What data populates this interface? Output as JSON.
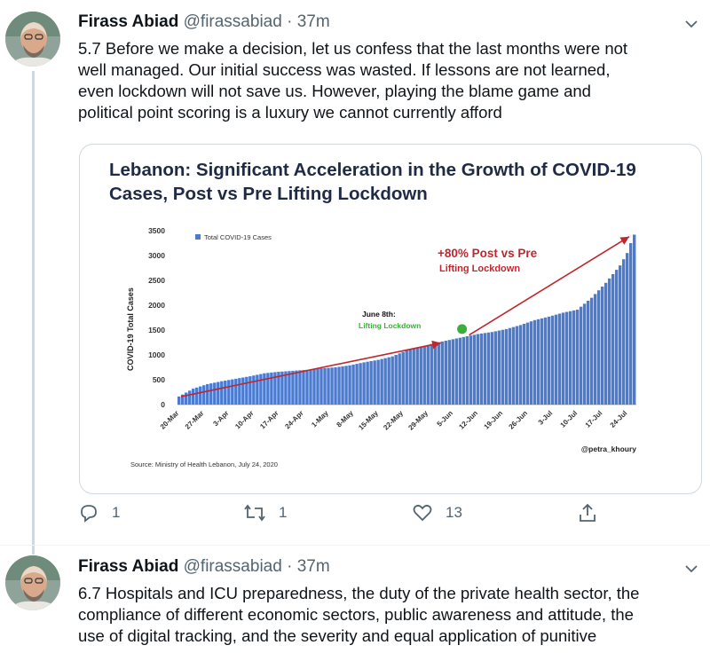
{
  "tweets": [
    {
      "name": "Firass Abiad",
      "handle": "@firassabiad",
      "separator": "·",
      "time": "37m",
      "lines": [
        "5.7 Before we make a decision, let us confess that the last months were not",
        "well managed. Our initial success was wasted. If lessons are not learned,",
        "even lockdown will not save us. However, playing the blame game and",
        "political point scoring is a luxury we cannot currently afford"
      ],
      "actions": {
        "reply_count": "1",
        "retweet_count": "1",
        "like_count": "13"
      }
    },
    {
      "name": "Firass Abiad",
      "handle": "@firassabiad",
      "separator": "·",
      "time": "37m",
      "lines": [
        "6.7 Hospitals and ICU preparedness, the duty of the private health sector, the",
        "compliance of different economic sectors, public awareness and attitude, the",
        "use of digital tracking, and the severity and equal application of punitive"
      ]
    }
  ],
  "icons": [
    "avatar",
    "chevron-down-icon",
    "reply-icon",
    "retweet-icon",
    "like-icon",
    "share-icon"
  ],
  "colors": {
    "bar": "#4a7bd0",
    "arrow": "#c0272d",
    "marker": "#3cae3c",
    "title": "#1f2a44"
  },
  "chart_data": {
    "type": "bar",
    "title_line1": "Lebanon: Significant Acceleration in the Growth of COVID-19",
    "title_line2": "Cases, Post vs Pre Lifting Lockdown",
    "legend": "Total COVID-19 Cases",
    "ylabel": "COVID-19 Total Cases",
    "ylim": [
      0,
      3500
    ],
    "yticks": [
      0,
      500,
      1000,
      1500,
      2000,
      2500,
      3000,
      3500
    ],
    "xticks": [
      "20-Mar",
      "27-Mar",
      "3-Apr",
      "10-Apr",
      "17-Apr",
      "24-Apr",
      "1-May",
      "8-May",
      "15-May",
      "22-May",
      "29-May",
      "5-Jun",
      "12-Jun",
      "19-Jun",
      "26-Jun",
      "3-Jul",
      "10-Jul",
      "17-Jul",
      "24-Jul"
    ],
    "annotation_marker_line1": "June 8th:",
    "annotation_marker_line2": "Lifting Lockdown",
    "annotation_growth_line1": "+80% Post vs Pre",
    "annotation_growth_line2": "Lifting Lockdown",
    "source": "Source: Ministry of Health Lebanon, July 24, 2020",
    "credit": "@petra_khoury",
    "keypoints": [
      [
        0,
        163
      ],
      [
        4,
        320
      ],
      [
        8,
        412
      ],
      [
        12,
        470
      ],
      [
        16,
        520
      ],
      [
        20,
        570
      ],
      [
        24,
        630
      ],
      [
        28,
        660
      ],
      [
        32,
        680
      ],
      [
        36,
        700
      ],
      [
        40,
        730
      ],
      [
        44,
        750
      ],
      [
        48,
        790
      ],
      [
        52,
        850
      ],
      [
        56,
        900
      ],
      [
        60,
        970
      ],
      [
        64,
        1090
      ],
      [
        68,
        1160
      ],
      [
        72,
        1240
      ],
      [
        76,
        1300
      ],
      [
        80,
        1360
      ],
      [
        84,
        1420
      ],
      [
        88,
        1460
      ],
      [
        92,
        1520
      ],
      [
        96,
        1600
      ],
      [
        100,
        1700
      ],
      [
        104,
        1770
      ],
      [
        108,
        1850
      ],
      [
        112,
        1910
      ],
      [
        116,
        2150
      ],
      [
        120,
        2450
      ],
      [
        124,
        2800
      ],
      [
        126,
        3050
      ],
      [
        127,
        3250
      ],
      [
        128,
        3420
      ]
    ]
  }
}
